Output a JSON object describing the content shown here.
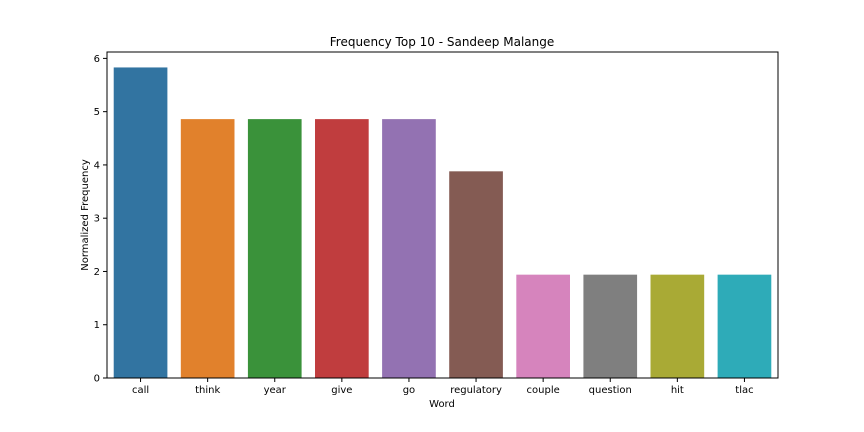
{
  "chart_data": {
    "type": "bar",
    "title": "Frequency Top 10 - Sandeep Malange",
    "xlabel": "Word",
    "ylabel": "Normalized Frequency",
    "categories": [
      "call",
      "think",
      "year",
      "give",
      "go",
      "regulatory",
      "couple",
      "question",
      "hit",
      "tlac"
    ],
    "values": [
      5.83,
      4.86,
      4.86,
      4.86,
      4.86,
      3.88,
      1.94,
      1.94,
      1.94,
      1.94
    ],
    "colors": [
      "#3274a1",
      "#e1812c",
      "#3a923a",
      "#c03d3e",
      "#9372b2",
      "#845b53",
      "#d684bd",
      "#7f7f7f",
      "#a9aa35",
      "#2eabb8"
    ],
    "ylim": [
      0,
      6.12
    ],
    "yticks": [
      0,
      1,
      2,
      3,
      4,
      5,
      6
    ],
    "grid": false,
    "legend": "none"
  }
}
